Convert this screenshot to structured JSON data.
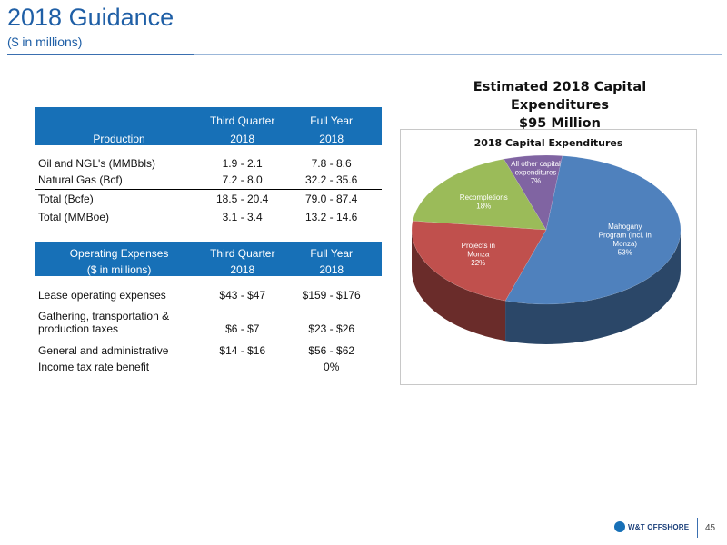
{
  "header": {
    "title": "2018 Guidance",
    "subtitle": "($ in millions)"
  },
  "production_table": {
    "headers": {
      "label": "Production",
      "q3_top": "Third Quarter",
      "q3_bottom": "2018",
      "fy_top": "Full Year",
      "fy_bottom": "2018"
    },
    "rows": [
      {
        "label": "Oil and NGL's (MMBbls)",
        "q3": "1.9 - 2.1",
        "fy": "7.8 - 8.6"
      },
      {
        "label": "Natural Gas (Bcf)",
        "q3": "7.2 - 8.0",
        "fy": "32.2 - 35.6"
      },
      {
        "label": "Total (Bcfe)",
        "q3": "18.5 - 20.4",
        "fy": "79.0 - 87.4"
      },
      {
        "label": "Total (MMBoe)",
        "q3": "3.1 - 3.4",
        "fy": "13.2 - 14.6"
      }
    ]
  },
  "opex_table": {
    "headers": {
      "label_top": "Operating Expenses",
      "label_bottom": "($ in millions)",
      "q3_top": "Third Quarter",
      "q3_bottom": "2018",
      "fy_top": "Full Year",
      "fy_bottom": "2018"
    },
    "rows": [
      {
        "label": "Lease operating expenses",
        "q3": "$43 - $47",
        "fy": "$159 - $176"
      },
      {
        "label_line1": "Gathering, transportation &",
        "label_line2": "production taxes",
        "q3": "$6 - $7",
        "fy": "$23 - $26"
      },
      {
        "label": "General and administrative",
        "q3": "$14 - $16",
        "fy": "$56 - $62"
      },
      {
        "label": "Income tax rate benefit",
        "q3": "",
        "fy": "0%"
      }
    ]
  },
  "chart_data": {
    "type": "pie",
    "title": "Estimated 2018 Capital Expenditures",
    "subtitle": "$95 Million",
    "inner_title": "2018 Capital Expenditures",
    "slices": [
      {
        "name": "Mahogany Program (incl. in Monza)",
        "label_lines": [
          "Mahogany",
          "Program (incl. in",
          "Monza)"
        ],
        "pct_label": "53%",
        "value": 53,
        "color": "#4f81bd"
      },
      {
        "name": "Projects in Monza",
        "label_lines": [
          "Projects in",
          "Monza"
        ],
        "pct_label": "22%",
        "value": 22,
        "color": "#c0504d"
      },
      {
        "name": "Recompletions",
        "label_lines": [
          "Recompletions"
        ],
        "pct_label": "18%",
        "value": 18,
        "color": "#9bbb59"
      },
      {
        "name": "All other capital expenditures",
        "label_lines": [
          "All other capital",
          "expenditures"
        ],
        "pct_label": "7%",
        "value": 7,
        "color": "#8064a2"
      }
    ]
  },
  "footer": {
    "logo_text": "W&T OFFSHORE",
    "page_number": "45"
  }
}
